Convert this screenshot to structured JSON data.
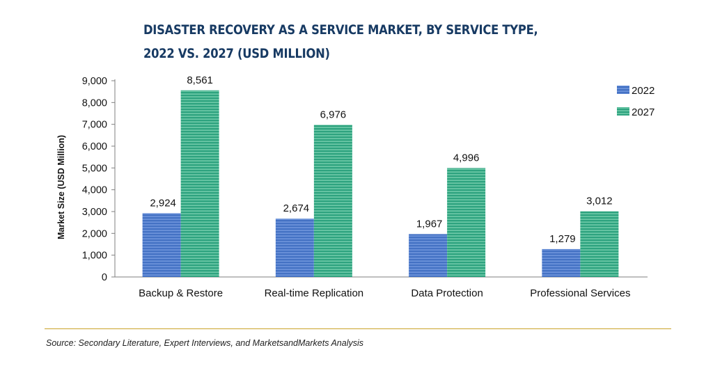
{
  "title_lines": [
    "DISASTER RECOVERY AS A SERVICE MARKET, BY SERVICE TYPE,",
    "2022 VS. 2027 (USD MILLION)"
  ],
  "source": "Source: Secondary Literature, Expert Interviews, and MarketsandMarkets Analysis",
  "chart_data": {
    "type": "bar",
    "title": "DISASTER RECOVERY AS A SERVICE MARKET, BY SERVICE TYPE, 2022 VS. 2027 (USD MILLION)",
    "categories": [
      "Backup & Restore",
      "Real-time Replication",
      "Data Protection",
      "Professional Services"
    ],
    "series": [
      {
        "name": "2022",
        "values": [
          2924,
          2674,
          1967,
          1279
        ],
        "value_labels": [
          "2,924",
          "2,674",
          "1,967",
          "1,279"
        ],
        "color": "#4472c4"
      },
      {
        "name": "2027",
        "values": [
          8561,
          6976,
          4996,
          3012
        ],
        "value_labels": [
          "8,561",
          "6,976",
          "4,996",
          "3,012"
        ],
        "color": "#2ea37f"
      }
    ],
    "ylabel": "Market Size (USD Million)",
    "xlabel": "",
    "ylim": [
      0,
      9000
    ],
    "yticks": [
      0,
      1000,
      2000,
      3000,
      4000,
      5000,
      6000,
      7000,
      8000,
      9000
    ],
    "ytick_labels": [
      "0",
      "1,000",
      "2,000",
      "3,000",
      "4,000",
      "5,000",
      "6,000",
      "7,000",
      "8,000",
      "9,000"
    ],
    "grid": false,
    "legend_position": "top-right"
  }
}
